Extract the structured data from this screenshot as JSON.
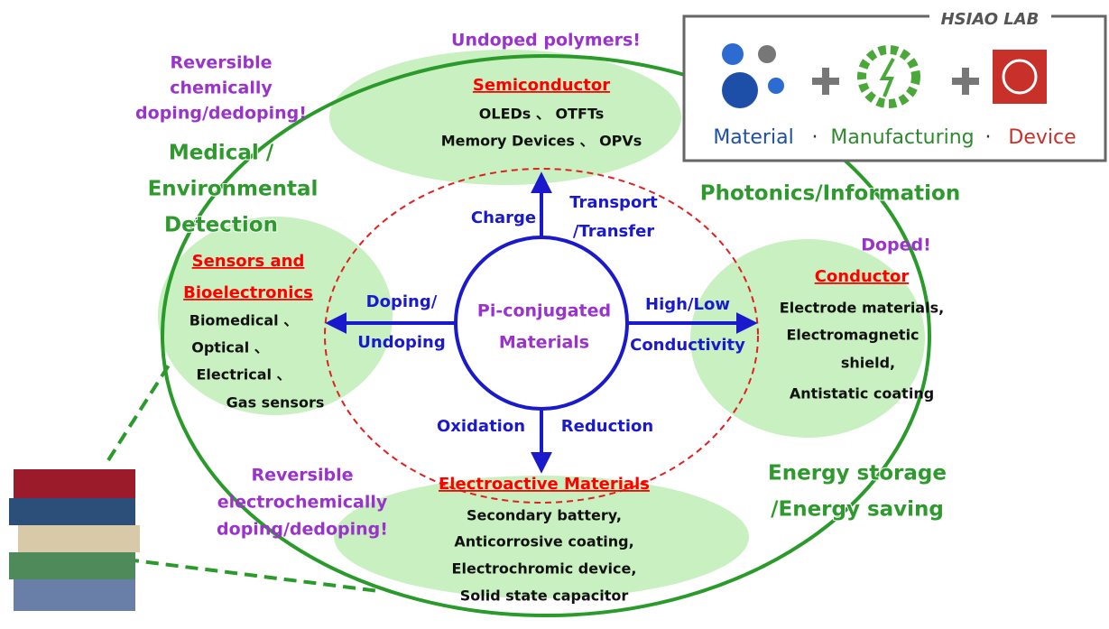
{
  "center": {
    "lines": [
      "Pi-conjugated",
      "Materials"
    ]
  },
  "arrows": {
    "up": [
      "Charge",
      "Transport",
      "/Transfer"
    ],
    "left": [
      "Doping/",
      "Undoping"
    ],
    "right": [
      "High/Low",
      "Conductivity"
    ],
    "down": [
      "Oxidation",
      "Reduction"
    ]
  },
  "nodes": [
    {
      "title": [
        "Semiconductor"
      ],
      "items": [
        "OLEDs 、 OTFTs",
        "Memory Devices 、 OPVs"
      ]
    },
    {
      "title": [
        "Sensors and",
        "Bioelectronics"
      ],
      "items": [
        "Biomedical 、",
        "Optical 、",
        "Electrical 、",
        "Gas sensors"
      ]
    },
    {
      "title": [
        "Conductor"
      ],
      "items": [
        "Electrode materials,",
        "Electromagnetic",
        "shield,",
        "Antistatic coating"
      ]
    },
    {
      "title": [
        "Electroactive Materials"
      ],
      "items": [
        "Secondary battery,",
        "Anticorrosive coating,",
        "Electrochromic device,",
        "Solid state capacitor"
      ]
    }
  ],
  "notes": {
    "undoped": "Undoped polymers!",
    "doped": "Doped!",
    "chemical": [
      "Reversible",
      "chemically",
      "doping/dedoping!"
    ],
    "electrochemical": [
      "Reversible",
      "electrochemically",
      "doping/dedoping!"
    ]
  },
  "fields": {
    "medical": [
      "Medical /",
      "Environmental",
      "Detection"
    ],
    "photonics": "Photonics/Information",
    "energy": [
      "Energy storage",
      "/Energy saving"
    ]
  },
  "logo": {
    "lab": "HSIAO LAB",
    "tagline": [
      "Material",
      "·",
      "Manufacturing",
      "·",
      "Device"
    ]
  }
}
